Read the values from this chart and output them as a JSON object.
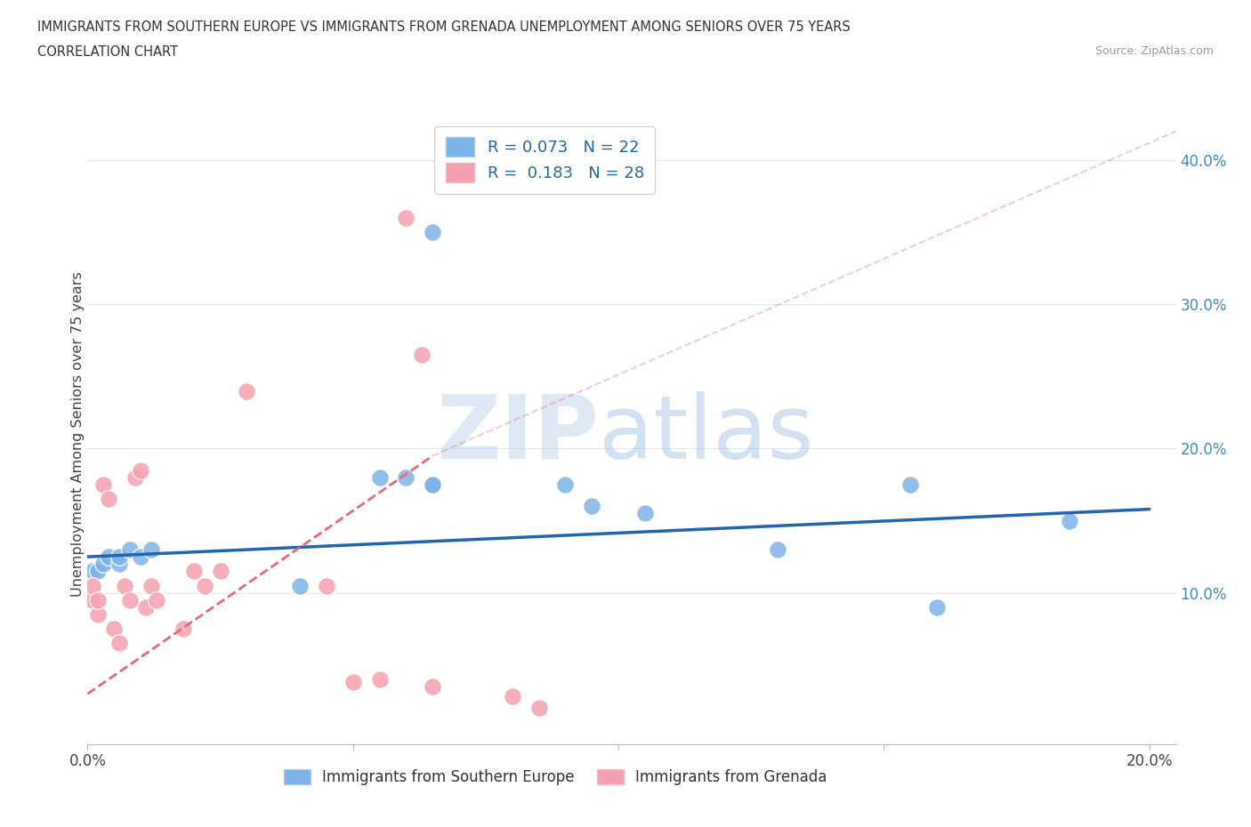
{
  "title_line1": "IMMIGRANTS FROM SOUTHERN EUROPE VS IMMIGRANTS FROM GRENADA UNEMPLOYMENT AMONG SENIORS OVER 75 YEARS",
  "title_line2": "CORRELATION CHART",
  "source": "Source: ZipAtlas.com",
  "ylabel": "Unemployment Among Seniors over 75 years",
  "r_blue": 0.073,
  "n_blue": 22,
  "r_pink": 0.183,
  "n_pink": 28,
  "color_blue": "#7EB3E8",
  "color_pink": "#F5A0B0",
  "trendline_blue": "#2166AC",
  "trendline_pink": "#E8687A",
  "xlim": [
    0.0,
    0.205
  ],
  "ylim": [
    -0.005,
    0.425
  ],
  "yticks_right": [
    0.1,
    0.2,
    0.3,
    0.4
  ],
  "ytick_right_labels": [
    "10.0%",
    "20.0%",
    "30.0%",
    "40.0%"
  ],
  "grid_color": "#DDE8F0",
  "background_color": "#FFFFFF",
  "blue_x": [
    0.001,
    0.002,
    0.003,
    0.004,
    0.006,
    0.006,
    0.008,
    0.01,
    0.012,
    0.04,
    0.055,
    0.06,
    0.065,
    0.065,
    0.09,
    0.095,
    0.105,
    0.13,
    0.155,
    0.16,
    0.185,
    0.065
  ],
  "blue_y": [
    0.115,
    0.115,
    0.12,
    0.125,
    0.12,
    0.125,
    0.13,
    0.125,
    0.13,
    0.105,
    0.18,
    0.18,
    0.175,
    0.175,
    0.175,
    0.16,
    0.155,
    0.13,
    0.175,
    0.09,
    0.15,
    0.35
  ],
  "pink_x": [
    0.001,
    0.001,
    0.002,
    0.002,
    0.003,
    0.004,
    0.005,
    0.006,
    0.007,
    0.008,
    0.009,
    0.01,
    0.011,
    0.012,
    0.013,
    0.018,
    0.02,
    0.022,
    0.025,
    0.03,
    0.045,
    0.05,
    0.055,
    0.06,
    0.063,
    0.065,
    0.08,
    0.085
  ],
  "pink_y": [
    0.095,
    0.105,
    0.085,
    0.095,
    0.175,
    0.165,
    0.075,
    0.065,
    0.105,
    0.095,
    0.18,
    0.185,
    0.09,
    0.105,
    0.095,
    0.075,
    0.115,
    0.105,
    0.115,
    0.24,
    0.105,
    0.038,
    0.04,
    0.36,
    0.265,
    0.035,
    0.028,
    0.02
  ],
  "blue_trend_x0": 0.0,
  "blue_trend_y0": 0.125,
  "blue_trend_x1": 0.2,
  "blue_trend_y1": 0.158,
  "pink_trend_x0": 0.0,
  "pink_trend_y0": 0.03,
  "pink_trend_x1": 0.065,
  "pink_trend_y1": 0.195
}
